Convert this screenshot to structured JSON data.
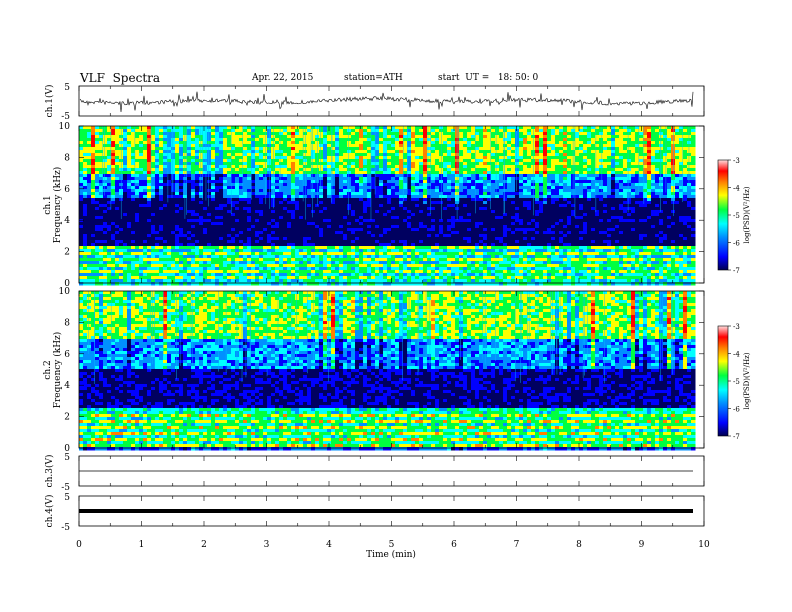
{
  "header": {
    "title": "VLF  Spectra",
    "date": "Apr. 22, 2015",
    "station": "station=ATH",
    "start": "start  UT =   18: 50: 0"
  },
  "xaxis": {
    "label": "Time  (min)",
    "ticks": [
      "0",
      "1",
      "2",
      "3",
      "4",
      "5",
      "6",
      "7",
      "8",
      "9",
      "10"
    ],
    "range": [
      0,
      10
    ],
    "data_end": 9.8
  },
  "panels": {
    "ch1_voltage": {
      "ylabel": "ch.1(V)",
      "ticks": [
        "5",
        "-5"
      ],
      "ylim": [
        -5,
        5
      ],
      "mean": 0
    },
    "ch1_spec": {
      "ylabel_1": "ch.1",
      "ylabel_2": "Frequency  (kHz)",
      "ticks": [
        "0",
        "2",
        "4",
        "6",
        "8",
        "10"
      ],
      "ylim_khz": [
        0,
        10
      ]
    },
    "ch2_spec": {
      "ylabel_1": "ch.2",
      "ylabel_2": "Frequency  (kHz)",
      "ticks": [
        "0",
        "2",
        "4",
        "6",
        "8",
        "10"
      ],
      "ylim_khz": [
        0,
        10
      ]
    },
    "ch3_voltage": {
      "ylabel": "ch.3(V)",
      "ticks": [
        "5",
        "-5"
      ],
      "ylim": [
        -5,
        5
      ],
      "level": 0
    },
    "ch4_voltage": {
      "ylabel": "ch.4(V)",
      "ticks": [
        "5",
        "-5"
      ],
      "ylim": [
        -5,
        5
      ],
      "level": 0
    }
  },
  "colorbar": {
    "label": "log(PSD)(V²/Hz)",
    "ticks": [
      "-3",
      "-4",
      "-5",
      "-6",
      "-7"
    ],
    "range": [
      -7,
      -3
    ],
    "colors": [
      "#000060",
      "#0000ff",
      "#0090ff",
      "#00ffff",
      "#00ff40",
      "#ffff00",
      "#ff8000",
      "#ff0000",
      "#ffffff"
    ]
  },
  "chart_data": {
    "type": "heatmap",
    "title": "VLF  Spectra",
    "xlabel": "Time  (min)",
    "xlim": [
      0,
      10
    ],
    "series": [
      {
        "name": "ch.1",
        "ylabel": "Frequency  (kHz)",
        "ylim": [
          0,
          10
        ],
        "bands_khz": [
          {
            "from": 0,
            "to": 2.3,
            "log_psd": -5.3
          },
          {
            "from": 2.3,
            "to": 5.5,
            "log_psd": -6.8
          },
          {
            "from": 5.5,
            "to": 7.0,
            "log_psd": -5.8
          },
          {
            "from": 7.0,
            "to": 10,
            "log_psd": -4.6
          }
        ]
      },
      {
        "name": "ch.2",
        "ylabel": "Frequency  (kHz)",
        "ylim": [
          0,
          10
        ],
        "bands_khz": [
          {
            "from": 0,
            "to": 2.6,
            "log_psd": -5.1
          },
          {
            "from": 2.6,
            "to": 5.0,
            "log_psd": -6.6
          },
          {
            "from": 5.0,
            "to": 7.0,
            "log_psd": -5.7
          },
          {
            "from": 7.0,
            "to": 10,
            "log_psd": -4.6
          }
        ]
      }
    ],
    "colorbar_range": [
      -7,
      -3
    ]
  }
}
